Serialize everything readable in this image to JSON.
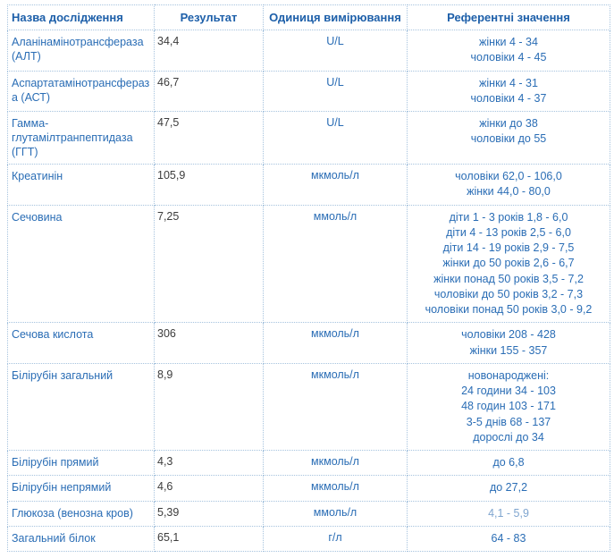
{
  "colors": {
    "header_text": "#1d5fa9",
    "body_text": "#2a6db5",
    "result_text": "#3c3c3c",
    "border": "#a6c3de",
    "muted_reference_text": "#7fa5cf",
    "background": "#ffffff"
  },
  "table": {
    "columns": [
      {
        "label": "Назва дослідження"
      },
      {
        "label": "Результат"
      },
      {
        "label": "Одиниця вимірювання"
      },
      {
        "label": "Референтні значення"
      }
    ],
    "rows": [
      {
        "name": "Аланінамінотрансфераза (АЛТ)",
        "result": "34,4",
        "unit": "U/L",
        "reference": [
          "жінки 4 - 34",
          "чоловіки 4 - 45"
        ]
      },
      {
        "name": "Аспартатамінотрансфераза (АСТ)",
        "result": "46,7",
        "unit": "U/L",
        "reference": [
          "жінки 4 - 31",
          "чоловіки 4 - 37"
        ]
      },
      {
        "name": "Гамма-глутамілтранпептидаза (ГГТ)",
        "result": "47,5",
        "unit": "U/L",
        "reference": [
          "жінки до 38",
          "чоловіки до 55"
        ]
      },
      {
        "name": "Креатинін",
        "result": "105,9",
        "unit": "мкмоль/л",
        "reference": [
          "чоловіки 62,0 - 106,0",
          "жінки 44,0 - 80,0"
        ]
      },
      {
        "name": "Сечовина",
        "result": "7,25",
        "unit": "ммоль/л",
        "reference": [
          "діти 1 - 3 років 1,8 - 6,0",
          "діти 4 - 13 років 2,5 - 6,0",
          "діти 14 - 19 років 2,9 - 7,5",
          "жінки до 50 років 2,6 - 6,7",
          "жінки понад 50 років 3,5 - 7,2",
          "чоловіки до 50 років 3,2 - 7,3",
          "чоловіки понад 50 років 3,0 - 9,2"
        ]
      },
      {
        "name": "Сечова кислота",
        "result": "306",
        "unit": "мкмоль/л",
        "reference": [
          "чоловіки 208 - 428",
          "жінки 155 - 357"
        ]
      },
      {
        "name": "Білірубін загальний",
        "result": "8,9",
        "unit": "мкмоль/л",
        "reference": [
          "новонароджені:",
          "24 години 34 - 103",
          "48 годин 103 - 171",
          "3-5 днів 68 - 137",
          "дорослі до 34"
        ]
      },
      {
        "name": "Білірубін прямий",
        "result": "4,3",
        "unit": "мкмоль/л",
        "reference": [
          "до 6,8"
        ]
      },
      {
        "name": "Білірубін непрямий",
        "result": "4,6",
        "unit": "мкмоль/л",
        "reference": [
          "до 27,2"
        ]
      },
      {
        "name": "Глюкоза (венозна кров)",
        "result": "5,39",
        "unit": "ммоль/л",
        "reference": [
          "4,1 - 5,9"
        ]
      },
      {
        "name": "Загальний білок",
        "result": "65,1",
        "unit": "г/л",
        "reference": [
          "64 - 83"
        ]
      }
    ]
  }
}
